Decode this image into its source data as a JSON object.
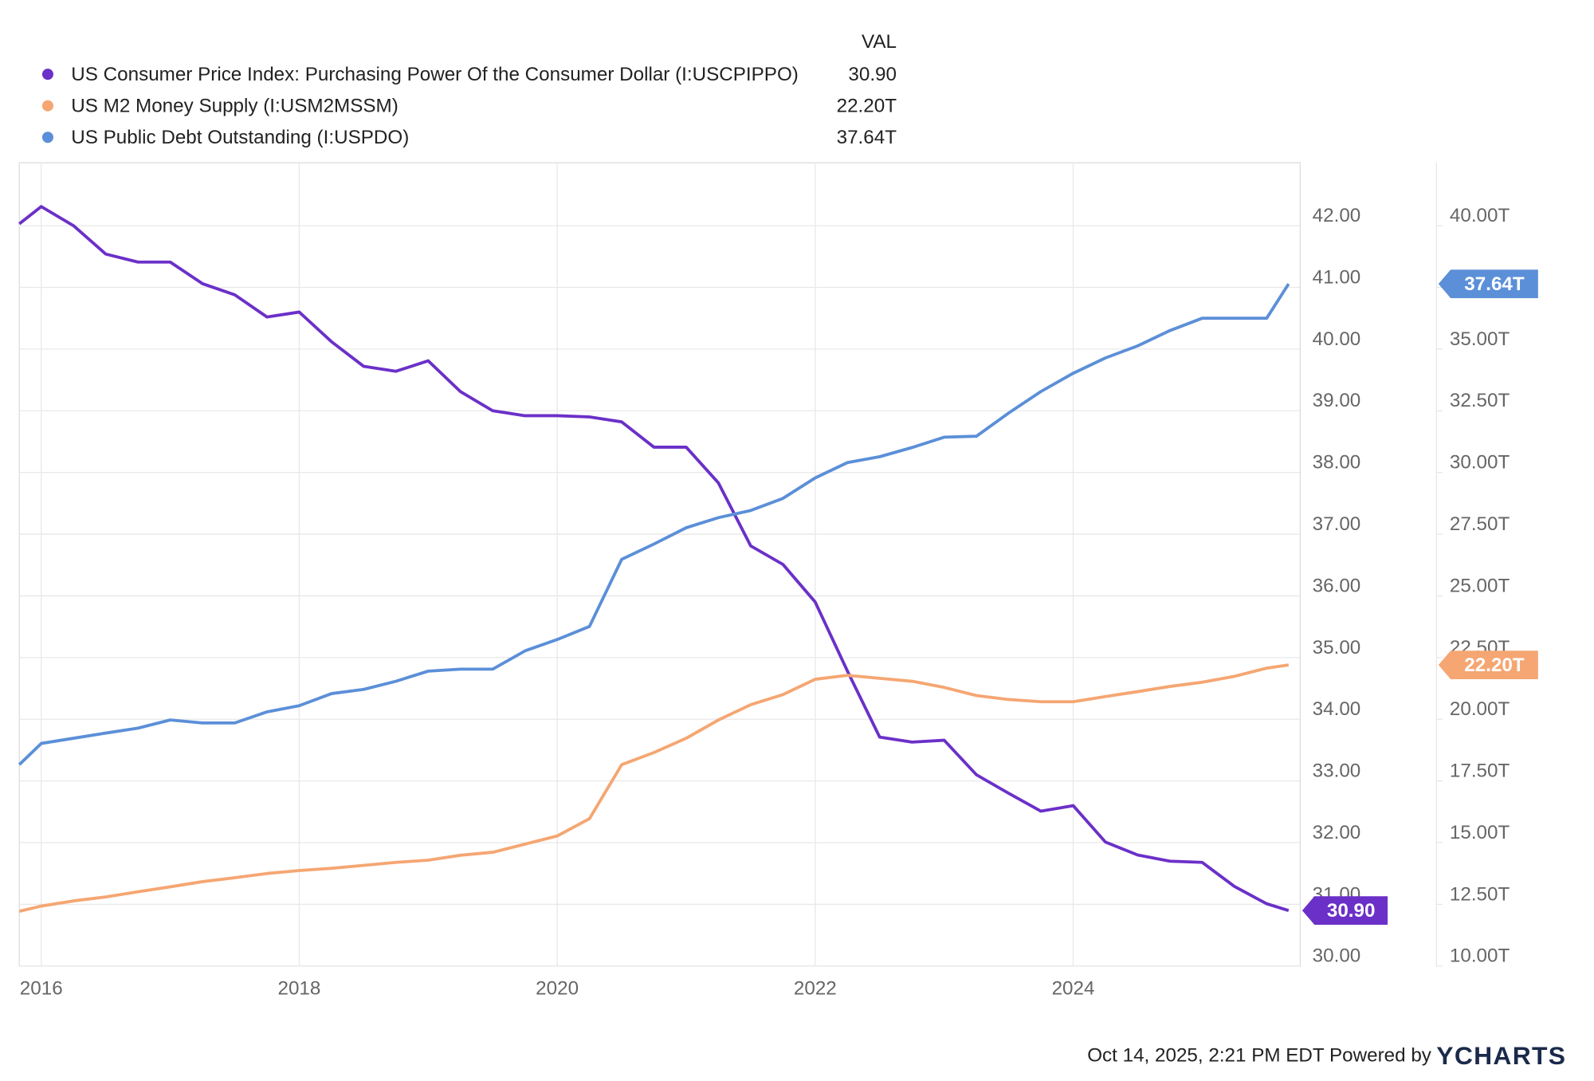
{
  "chart_data": {
    "type": "line",
    "legend_header": "VAL",
    "x": [
      2015.83,
      2016.0,
      2016.25,
      2016.5,
      2016.75,
      2017.0,
      2017.25,
      2017.5,
      2017.75,
      2018.0,
      2018.25,
      2018.5,
      2018.75,
      2019.0,
      2019.25,
      2019.5,
      2019.75,
      2020.0,
      2020.25,
      2020.5,
      2020.75,
      2021.0,
      2021.25,
      2021.5,
      2021.75,
      2022.0,
      2022.25,
      2022.5,
      2022.75,
      2023.0,
      2023.25,
      2023.5,
      2023.75,
      2024.0,
      2024.25,
      2024.5,
      2024.75,
      2025.0,
      2025.25,
      2025.5,
      2025.67
    ],
    "series": [
      {
        "name": "US Consumer Price Index: Purchasing Power Of the Consumer Dollar (I:USCPIPPO)",
        "color": "#6b30c8",
        "value_label": "30.90",
        "values": [
          42.03,
          42.31,
          42.0,
          41.54,
          41.41,
          41.41,
          41.06,
          40.88,
          40.52,
          40.6,
          40.12,
          39.72,
          39.64,
          39.81,
          39.31,
          39.0,
          38.92,
          38.92,
          38.9,
          38.82,
          38.41,
          38.41,
          37.83,
          36.81,
          36.51,
          35.9,
          34.78,
          33.71,
          33.63,
          33.66,
          33.1,
          32.8,
          32.51,
          32.6,
          32.01,
          31.8,
          31.7,
          31.68,
          31.29,
          31.01,
          30.9
        ]
      },
      {
        "name": "US M2 Money Supply (I:USM2MSSM)",
        "color": "#f5a672",
        "axis": "y2",
        "value_label": "22.20T",
        "values": [
          12.22,
          12.43,
          12.64,
          12.8,
          13.01,
          13.21,
          13.42,
          13.58,
          13.75,
          13.87,
          13.96,
          14.08,
          14.2,
          14.29,
          14.49,
          14.61,
          14.94,
          15.27,
          15.97,
          18.16,
          18.65,
          19.23,
          19.97,
          20.59,
          21.0,
          21.62,
          21.78,
          21.66,
          21.54,
          21.29,
          20.96,
          20.8,
          20.71,
          20.71,
          20.92,
          21.12,
          21.33,
          21.5,
          21.74,
          22.07,
          22.2
        ]
      },
      {
        "name": "US Public Debt Outstanding (I:USPDO)",
        "color": "#5b8fd8",
        "axis": "y2",
        "value_label": "37.64T",
        "values": [
          18.16,
          19.02,
          19.23,
          19.44,
          19.64,
          19.97,
          19.85,
          19.85,
          20.3,
          20.55,
          21.04,
          21.21,
          21.54,
          21.95,
          22.03,
          22.03,
          22.77,
          23.23,
          23.76,
          26.48,
          27.1,
          27.76,
          28.17,
          28.46,
          28.95,
          29.78,
          30.4,
          30.64,
          31.01,
          31.43,
          31.47,
          32.41,
          33.28,
          34.02,
          34.64,
          35.13,
          35.75,
          36.25,
          36.25,
          36.25,
          37.64
        ]
      }
    ],
    "xlim": [
      2015.83,
      2025.76
    ],
    "xticks": [
      2016,
      2018,
      2020,
      2022,
      2024
    ],
    "ylim": [
      30,
      43.02
    ],
    "yticks": [
      {
        "value": 30,
        "label": "30.00"
      },
      {
        "value": 31,
        "label": "31.00"
      },
      {
        "value": 32,
        "label": "32.00"
      },
      {
        "value": 33,
        "label": "33.00"
      },
      {
        "value": 34,
        "label": "34.00"
      },
      {
        "value": 35,
        "label": "35.00"
      },
      {
        "value": 36,
        "label": "36.00"
      },
      {
        "value": 37,
        "label": "37.00"
      },
      {
        "value": 38,
        "label": "38.00"
      },
      {
        "value": 39,
        "label": "39.00"
      },
      {
        "value": 40,
        "label": "40.00"
      },
      {
        "value": 41,
        "label": "41.00"
      },
      {
        "value": 42,
        "label": "42.00"
      }
    ],
    "y2lim": [
      10,
      42.55
    ],
    "y2ticks": [
      {
        "value": 10,
        "label": "10.00T"
      },
      {
        "value": 12.5,
        "label": "12.50T"
      },
      {
        "value": 15,
        "label": "15.00T"
      },
      {
        "value": 17.5,
        "label": "17.50T"
      },
      {
        "value": 20,
        "label": "20.00T"
      },
      {
        "value": 22.5,
        "label": "22.50T"
      },
      {
        "value": 25,
        "label": "25.00T"
      },
      {
        "value": 27.5,
        "label": "27.50T"
      },
      {
        "value": 30,
        "label": "30.00T"
      },
      {
        "value": 32.5,
        "label": "32.50T"
      },
      {
        "value": 35,
        "label": "35.00T"
      },
      {
        "value": 37.5,
        "label": "37.50T"
      },
      {
        "value": 40,
        "label": "40.00T"
      }
    ],
    "grid": true,
    "timestamp": "Oct 14, 2025, 2:21 PM EDT Powered by",
    "brand": "YCHARTS"
  }
}
